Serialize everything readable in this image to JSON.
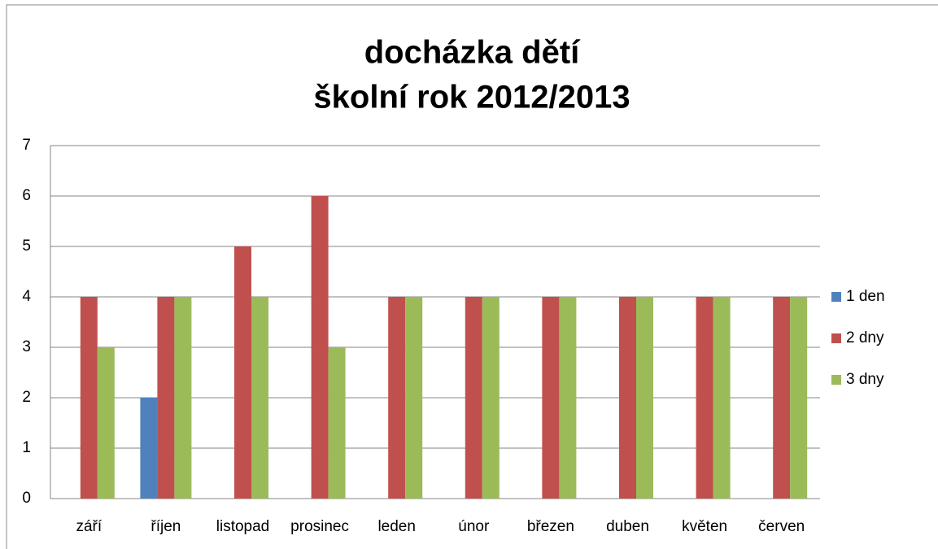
{
  "chart_data": {
    "type": "bar",
    "title": [
      "docházka dětí",
      "školní rok 2012/2013"
    ],
    "categories": [
      "září",
      "říjen",
      "listopad",
      "prosinec",
      "leden",
      "únor",
      "březen",
      "duben",
      "květen",
      "červen"
    ],
    "series": [
      {
        "name": "1 den",
        "color": "#4f81bd",
        "values": [
          null,
          2,
          null,
          null,
          null,
          null,
          null,
          null,
          null,
          null
        ]
      },
      {
        "name": "2 dny",
        "color": "#c0504d",
        "values": [
          4,
          4,
          5,
          6,
          4,
          4,
          4,
          4,
          4,
          4
        ]
      },
      {
        "name": "3 dny",
        "color": "#9bbb59",
        "values": [
          3,
          4,
          4,
          3,
          4,
          4,
          4,
          4,
          4,
          4
        ]
      }
    ],
    "ylim": [
      0,
      7
    ],
    "yticks": [
      0,
      1,
      2,
      3,
      4,
      5,
      6,
      7
    ],
    "grid": true,
    "legend": "right"
  }
}
